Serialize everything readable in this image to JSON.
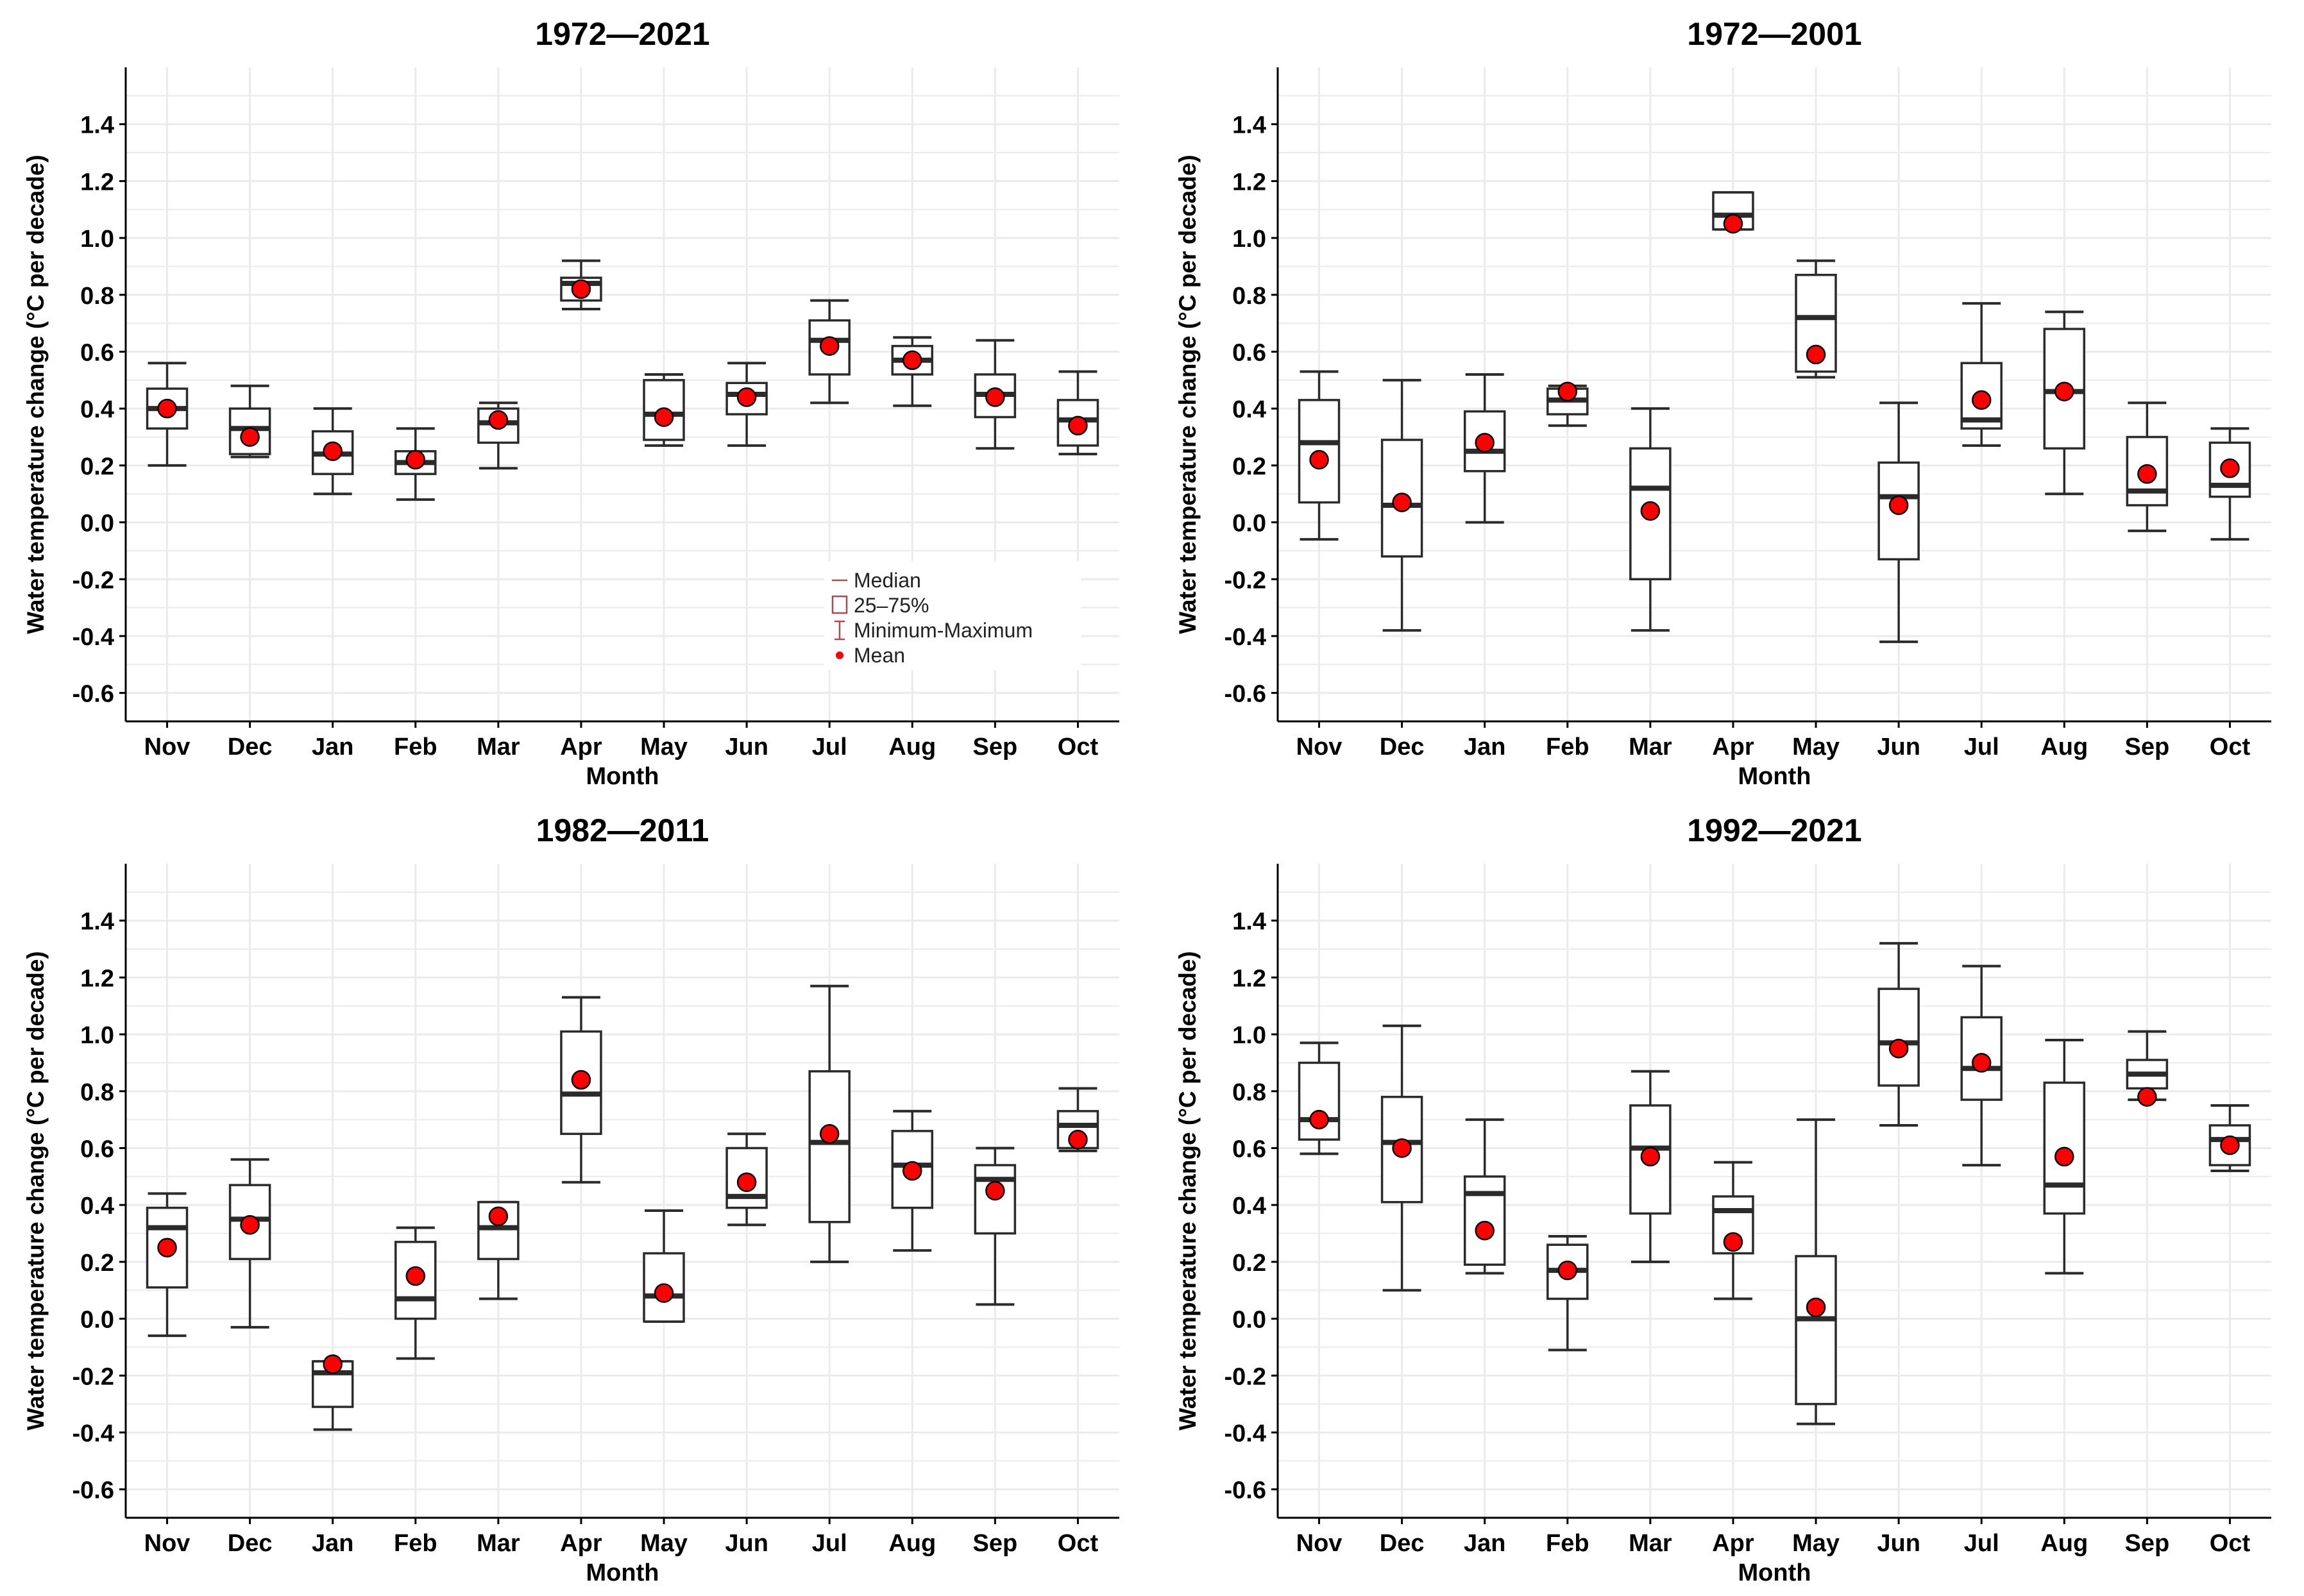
{
  "figure": {
    "months": [
      "Nov",
      "Dec",
      "Jan",
      "Feb",
      "Mar",
      "Apr",
      "May",
      "Jun",
      "Jul",
      "Aug",
      "Sep",
      "Oct"
    ],
    "ylabel": "Water temperature change (°C per decade)",
    "xlabel": "Month",
    "ylim": [
      -0.7,
      1.6
    ],
    "yticks": [
      -0.6,
      -0.4,
      -0.2,
      0.0,
      0.2,
      0.4,
      0.6,
      0.8,
      1.0,
      1.2,
      1.4
    ],
    "legend": {
      "position": "bottom-right",
      "items": [
        "Median",
        "25–75%",
        "Minimum-Maximum",
        "Mean"
      ]
    },
    "colors": {
      "mean": "#ff0000",
      "box": "#2b2b2b",
      "grid": "#ebebeb",
      "legend": "#b04a4a"
    }
  },
  "chart_data": [
    {
      "type": "boxplot",
      "title": "1972—2021",
      "xlabel": "Month",
      "ylabel": "Water temperature change (°C per decade)",
      "ylim": [
        -0.7,
        1.6
      ],
      "categories": [
        "Nov",
        "Dec",
        "Jan",
        "Feb",
        "Mar",
        "Apr",
        "May",
        "Jun",
        "Jul",
        "Aug",
        "Sep",
        "Oct"
      ],
      "min": [
        0.2,
        0.23,
        0.1,
        0.08,
        0.19,
        0.75,
        0.27,
        0.27,
        0.42,
        0.41,
        0.26,
        0.24
      ],
      "q1": [
        0.33,
        0.24,
        0.17,
        0.17,
        0.28,
        0.78,
        0.29,
        0.38,
        0.52,
        0.52,
        0.37,
        0.27
      ],
      "median": [
        0.4,
        0.33,
        0.24,
        0.21,
        0.35,
        0.84,
        0.38,
        0.45,
        0.64,
        0.57,
        0.45,
        0.36
      ],
      "q3": [
        0.47,
        0.4,
        0.32,
        0.25,
        0.4,
        0.86,
        0.5,
        0.49,
        0.71,
        0.62,
        0.52,
        0.43
      ],
      "max": [
        0.56,
        0.48,
        0.4,
        0.33,
        0.42,
        0.92,
        0.52,
        0.56,
        0.78,
        0.65,
        0.64,
        0.53
      ],
      "mean": [
        0.4,
        0.3,
        0.25,
        0.22,
        0.36,
        0.82,
        0.37,
        0.44,
        0.62,
        0.57,
        0.44,
        0.34
      ]
    },
    {
      "type": "boxplot",
      "title": "1972—2001",
      "xlabel": "Month",
      "ylabel": "Water temperature change (°C per decade)",
      "ylim": [
        -0.7,
        1.6
      ],
      "categories": [
        "Nov",
        "Dec",
        "Jan",
        "Feb",
        "Mar",
        "Apr",
        "May",
        "Jun",
        "Jul",
        "Aug",
        "Sep",
        "Oct"
      ],
      "min": [
        -0.06,
        -0.38,
        0.0,
        0.34,
        -0.38,
        1.03,
        0.51,
        -0.42,
        0.27,
        0.1,
        -0.03,
        -0.06
      ],
      "q1": [
        0.07,
        -0.12,
        0.18,
        0.38,
        -0.2,
        1.03,
        0.53,
        -0.13,
        0.33,
        0.26,
        0.06,
        0.09
      ],
      "median": [
        0.28,
        0.06,
        0.25,
        0.43,
        0.12,
        1.08,
        0.72,
        0.09,
        0.36,
        0.46,
        0.11,
        0.13
      ],
      "q3": [
        0.43,
        0.29,
        0.39,
        0.47,
        0.26,
        1.16,
        0.87,
        0.21,
        0.56,
        0.68,
        0.3,
        0.28
      ],
      "max": [
        0.53,
        0.5,
        0.52,
        0.48,
        0.4,
        1.16,
        0.92,
        0.42,
        0.77,
        0.74,
        0.42,
        0.33
      ],
      "mean": [
        0.22,
        0.07,
        0.28,
        0.46,
        0.04,
        1.05,
        0.59,
        0.06,
        0.43,
        0.46,
        0.17,
        0.19
      ]
    },
    {
      "type": "boxplot",
      "title": "1982—2011",
      "xlabel": "Month",
      "ylabel": "Water temperature change (°C per decade)",
      "ylim": [
        -0.7,
        1.6
      ],
      "categories": [
        "Nov",
        "Dec",
        "Jan",
        "Feb",
        "Mar",
        "Apr",
        "May",
        "Jun",
        "Jul",
        "Aug",
        "Sep",
        "Oct"
      ],
      "min": [
        -0.06,
        -0.03,
        -0.39,
        -0.14,
        0.07,
        0.48,
        -0.01,
        0.33,
        0.2,
        0.24,
        0.05,
        0.59
      ],
      "q1": [
        0.11,
        0.21,
        -0.31,
        0.0,
        0.21,
        0.65,
        -0.01,
        0.39,
        0.34,
        0.39,
        0.3,
        0.6
      ],
      "median": [
        0.32,
        0.35,
        -0.19,
        0.07,
        0.32,
        0.79,
        0.08,
        0.43,
        0.62,
        0.54,
        0.49,
        0.68
      ],
      "q3": [
        0.39,
        0.47,
        -0.15,
        0.27,
        0.41,
        1.01,
        0.23,
        0.6,
        0.87,
        0.66,
        0.54,
        0.73
      ],
      "max": [
        0.44,
        0.56,
        -0.15,
        0.32,
        0.41,
        1.13,
        0.38,
        0.65,
        1.17,
        0.73,
        0.6,
        0.81
      ],
      "mean": [
        0.25,
        0.33,
        -0.16,
        0.15,
        0.36,
        0.84,
        0.09,
        0.48,
        0.65,
        0.52,
        0.45,
        0.63
      ]
    },
    {
      "type": "boxplot",
      "title": "1992—2021",
      "xlabel": "Month",
      "ylabel": "Water temperature change (°C per decade)",
      "ylim": [
        -0.7,
        1.6
      ],
      "categories": [
        "Nov",
        "Dec",
        "Jan",
        "Feb",
        "Mar",
        "Apr",
        "May",
        "Jun",
        "Jul",
        "Aug",
        "Sep",
        "Oct"
      ],
      "min": [
        0.58,
        0.1,
        0.16,
        -0.11,
        0.2,
        0.07,
        -0.37,
        0.68,
        0.54,
        0.16,
        0.77,
        0.52
      ],
      "q1": [
        0.63,
        0.41,
        0.19,
        0.07,
        0.37,
        0.23,
        -0.3,
        0.82,
        0.77,
        0.37,
        0.81,
        0.54
      ],
      "median": [
        0.7,
        0.62,
        0.44,
        0.17,
        0.6,
        0.38,
        0.0,
        0.97,
        0.88,
        0.47,
        0.86,
        0.63
      ],
      "q3": [
        0.9,
        0.78,
        0.5,
        0.26,
        0.75,
        0.43,
        0.22,
        1.16,
        1.06,
        0.83,
        0.91,
        0.68
      ],
      "max": [
        0.97,
        1.03,
        0.7,
        0.29,
        0.87,
        0.55,
        0.7,
        1.32,
        1.24,
        0.98,
        1.01,
        0.75
      ],
      "mean": [
        0.7,
        0.6,
        0.31,
        0.17,
        0.57,
        0.27,
        0.04,
        0.95,
        0.9,
        0.57,
        0.78,
        0.61
      ]
    }
  ]
}
